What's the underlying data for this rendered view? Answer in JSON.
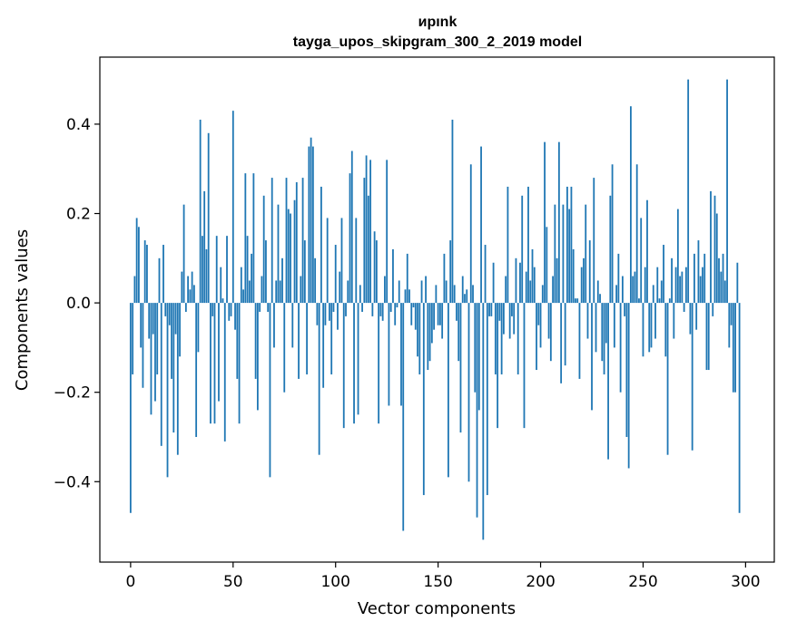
{
  "chart_data": {
    "type": "bar",
    "title_line1": "ирınk",
    "title_line2": "tayga_upos_skipgram_300_2_2019 model",
    "xlabel": "Vector components",
    "ylabel": "Components values",
    "xlim": [
      -15,
      314
    ],
    "ylim": [
      -0.58,
      0.55
    ],
    "xticks": [
      0,
      50,
      100,
      150,
      200,
      250,
      300
    ],
    "yticks": [
      -0.4,
      -0.2,
      0.0,
      0.2,
      0.4
    ],
    "ytick_labels": [
      "−0.4",
      "−0.2",
      "0.0",
      "0.2",
      "0.4"
    ],
    "bar_color": "#1f77b4",
    "legend": "none",
    "grid": false,
    "values": [
      -0.47,
      -0.16,
      0.06,
      0.19,
      0.17,
      -0.1,
      -0.19,
      0.14,
      0.13,
      -0.08,
      -0.25,
      -0.07,
      -0.22,
      -0.16,
      0.1,
      -0.32,
      0.13,
      -0.03,
      -0.39,
      -0.05,
      -0.17,
      -0.29,
      -0.07,
      -0.34,
      -0.12,
      0.07,
      0.22,
      -0.02,
      0.06,
      0.03,
      0.07,
      0.04,
      -0.3,
      -0.11,
      0.41,
      0.15,
      0.25,
      0.12,
      0.38,
      -0.27,
      -0.03,
      -0.27,
      0.15,
      -0.22,
      0.08,
      0.01,
      -0.31,
      0.15,
      -0.04,
      -0.03,
      0.43,
      -0.06,
      -0.17,
      -0.27,
      0.08,
      0.03,
      0.29,
      0.15,
      0.05,
      0.11,
      0.29,
      -0.17,
      -0.24,
      -0.02,
      0.06,
      0.24,
      0.14,
      -0.02,
      -0.39,
      0.28,
      -0.1,
      0.05,
      0.22,
      0.05,
      0.1,
      -0.2,
      0.28,
      0.21,
      0.2,
      -0.1,
      0.23,
      0.27,
      -0.17,
      0.06,
      0.28,
      0.14,
      -0.16,
      0.35,
      0.37,
      0.35,
      0.1,
      -0.05,
      -0.34,
      0.26,
      -0.19,
      -0.05,
      0.19,
      -0.04,
      -0.16,
      -0.02,
      0.13,
      -0.06,
      0.07,
      0.19,
      -0.28,
      -0.03,
      0.05,
      0.29,
      0.34,
      -0.27,
      0.19,
      -0.25,
      0.04,
      -0.02,
      0.28,
      0.33,
      0.24,
      0.32,
      -0.03,
      0.16,
      0.14,
      -0.27,
      -0.03,
      -0.04,
      0.06,
      0.32,
      -0.23,
      -0.02,
      0.12,
      -0.05,
      -0.01,
      0.05,
      -0.23,
      -0.51,
      0.03,
      0.11,
      0.03,
      -0.05,
      -0.01,
      -0.06,
      -0.12,
      -0.16,
      0.05,
      -0.43,
      0.06,
      -0.15,
      -0.13,
      -0.09,
      -0.06,
      0.04,
      -0.05,
      -0.05,
      -0.08,
      0.11,
      0.05,
      -0.39,
      0.14,
      0.41,
      0.04,
      -0.04,
      -0.13,
      -0.29,
      0.06,
      0.02,
      0.03,
      -0.4,
      0.31,
      0.04,
      -0.2,
      -0.48,
      -0.24,
      0.35,
      -0.53,
      0.13,
      -0.43,
      -0.03,
      -0.03,
      0.09,
      -0.16,
      -0.28,
      -0.04,
      -0.16,
      -0.07,
      0.06,
      0.26,
      -0.08,
      -0.03,
      -0.07,
      0.1,
      -0.16,
      0.09,
      0.24,
      -0.28,
      0.07,
      0.26,
      0.05,
      0.12,
      0.08,
      -0.15,
      -0.05,
      -0.1,
      0.04,
      0.36,
      0.17,
      -0.08,
      -0.13,
      0.06,
      0.22,
      0.1,
      0.36,
      -0.18,
      0.22,
      -0.14,
      0.26,
      0.21,
      0.26,
      0.12,
      0.01,
      0.01,
      -0.17,
      0.08,
      0.1,
      0.22,
      -0.08,
      0.14,
      -0.24,
      0.28,
      -0.11,
      0.05,
      0.02,
      -0.13,
      -0.16,
      -0.09,
      -0.35,
      0.24,
      0.31,
      -0.1,
      0.04,
      0.11,
      -0.2,
      0.06,
      -0.03,
      -0.3,
      -0.37,
      0.44,
      0.06,
      0.07,
      0.31,
      0.01,
      0.19,
      -0.12,
      0.08,
      0.23,
      -0.11,
      -0.1,
      0.04,
      -0.08,
      0.08,
      0.01,
      0.05,
      0.13,
      -0.12,
      -0.34,
      0.01,
      0.1,
      -0.08,
      0.08,
      0.21,
      0.06,
      0.07,
      -0.02,
      0.08,
      0.5,
      -0.07,
      -0.33,
      0.11,
      -0.06,
      0.14,
      0.06,
      0.08,
      0.11,
      -0.15,
      -0.15,
      0.25,
      -0.03,
      0.24,
      0.2,
      0.1,
      0.07,
      0.11,
      0.05,
      0.5,
      -0.1,
      -0.05,
      -0.2,
      -0.2,
      0.09,
      -0.47
    ]
  }
}
